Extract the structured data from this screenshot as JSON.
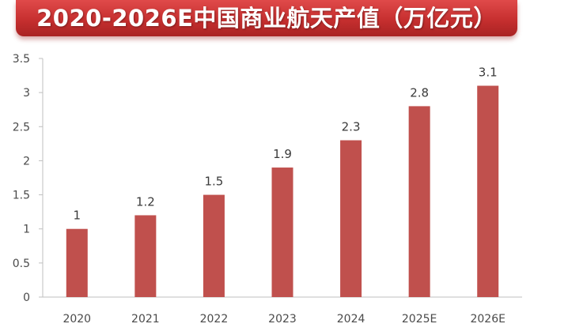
{
  "chart_data": {
    "type": "bar",
    "title": "2020-2026E中国商业航天产值（万亿元）",
    "categories": [
      "2020",
      "2021",
      "2022",
      "2023",
      "2024",
      "2025E",
      "2026E"
    ],
    "values": [
      1,
      1.2,
      1.5,
      1.9,
      2.3,
      2.8,
      3.1
    ],
    "value_labels": [
      "1",
      "1.2",
      "1.5",
      "1.9",
      "2.3",
      "2.8",
      "3.1"
    ],
    "yticks": [
      "0",
      "0.5",
      "1",
      "1.5",
      "2",
      "2.5",
      "3",
      "3.5"
    ],
    "ylim": [
      0,
      3.5
    ],
    "grid": false,
    "legend": "none",
    "bar_color": "#c0504d",
    "title_bar_color": "#c62f2f"
  }
}
